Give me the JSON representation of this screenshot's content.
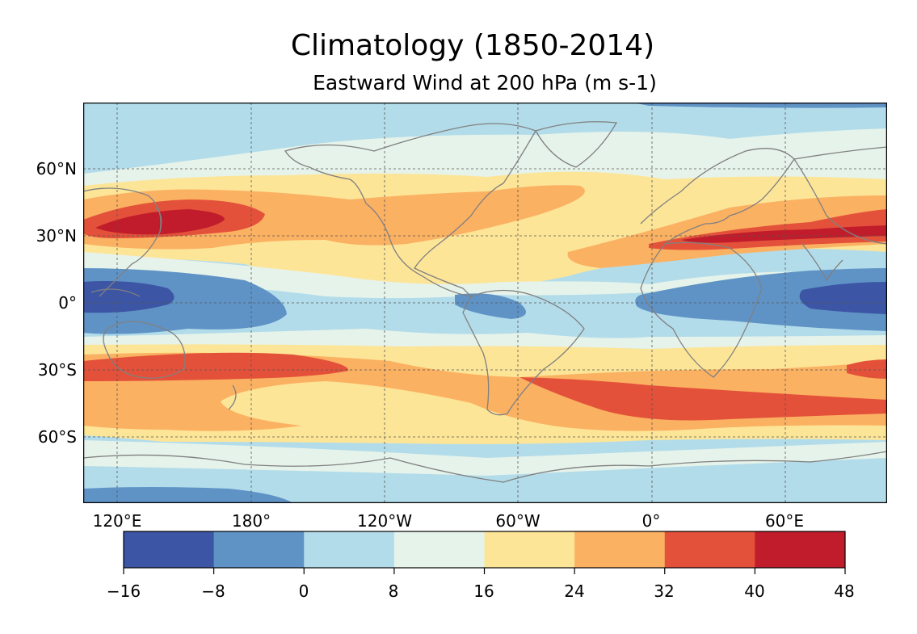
{
  "figure": {
    "title": "Climatology (1850-2014)",
    "subtitle": "Eastward Wind at 200 hPa (m s-1)"
  },
  "map": {
    "lat_labels": [
      "60°N",
      "30°N",
      "0°",
      "30°S",
      "60°S"
    ],
    "lon_labels": [
      "120°E",
      "180°",
      "120°W",
      "60°W",
      "0°",
      "60°E"
    ],
    "gridlines": true,
    "coastline_color": "#808080"
  },
  "colorbar": {
    "ticks": [
      "−16",
      "−8",
      "0",
      "8",
      "16",
      "24",
      "32",
      "40",
      "48"
    ],
    "levels": [
      -16,
      -8,
      0,
      8,
      16,
      24,
      32,
      40,
      48
    ],
    "colors": [
      "#3c55a4",
      "#5f93c6",
      "#b3dcea",
      "#e6f3ea",
      "#fde598",
      "#fbb162",
      "#e4513a",
      "#c11c2b"
    ]
  }
}
